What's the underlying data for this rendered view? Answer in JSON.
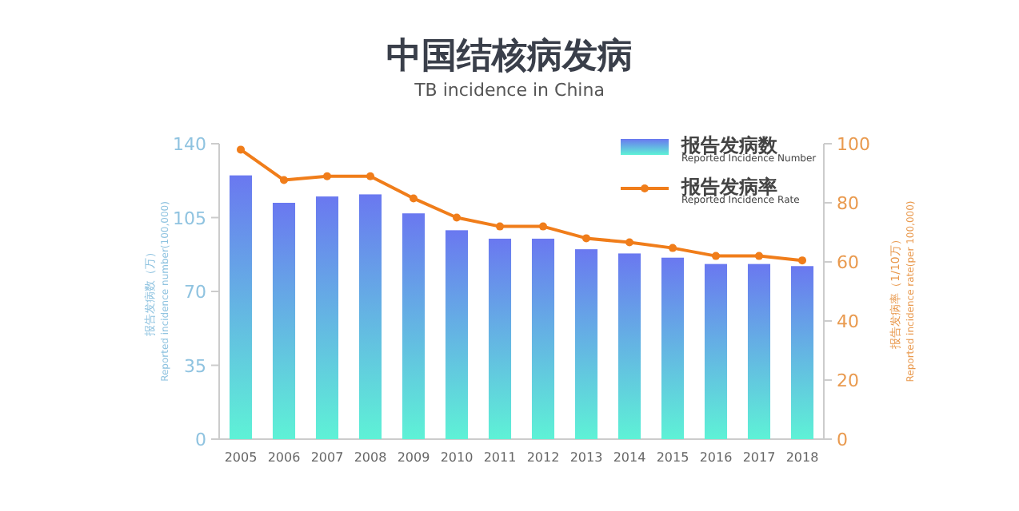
{
  "chart_data": {
    "type": "bar",
    "title": "中国结核病发病",
    "subtitle": "TB incidence in China",
    "categories": [
      "2005",
      "2006",
      "2007",
      "2008",
      "2009",
      "2010",
      "2011",
      "2012",
      "2013",
      "2014",
      "2015",
      "2016",
      "2017",
      "2018"
    ],
    "series": [
      {
        "name": "报告发病数\nReported Incidence Number",
        "color": "#6a78f0",
        "values": [
          125,
          112,
          115,
          116,
          107,
          99,
          95,
          95,
          90,
          88,
          86,
          83,
          83,
          82
        ]
      },
      {
        "name": "报告发病率\nReported Incidence Rate",
        "type": "line",
        "axis": "y2",
        "color": "#f07d1a",
        "values": [
          98,
          87.7,
          89,
          89,
          81.5,
          75,
          72,
          72,
          68,
          66.6,
          64.7,
          62,
          62,
          60.5
        ]
      }
    ],
    "ylabel": "报告发病数（万）\nReported incidence number(100,000)",
    "y2label": "报告发病率（1/10万）\nReported incidence rate(per 100,000)",
    "ylim": [
      0,
      140
    ],
    "yticks": [
      0,
      35,
      70,
      105,
      140
    ],
    "y2lim": [
      0,
      100
    ],
    "y2ticks": [
      0,
      20,
      40,
      60,
      80,
      100
    ],
    "grid": false,
    "legend": "top right",
    "marker": "circle",
    "line_style": "solid"
  }
}
